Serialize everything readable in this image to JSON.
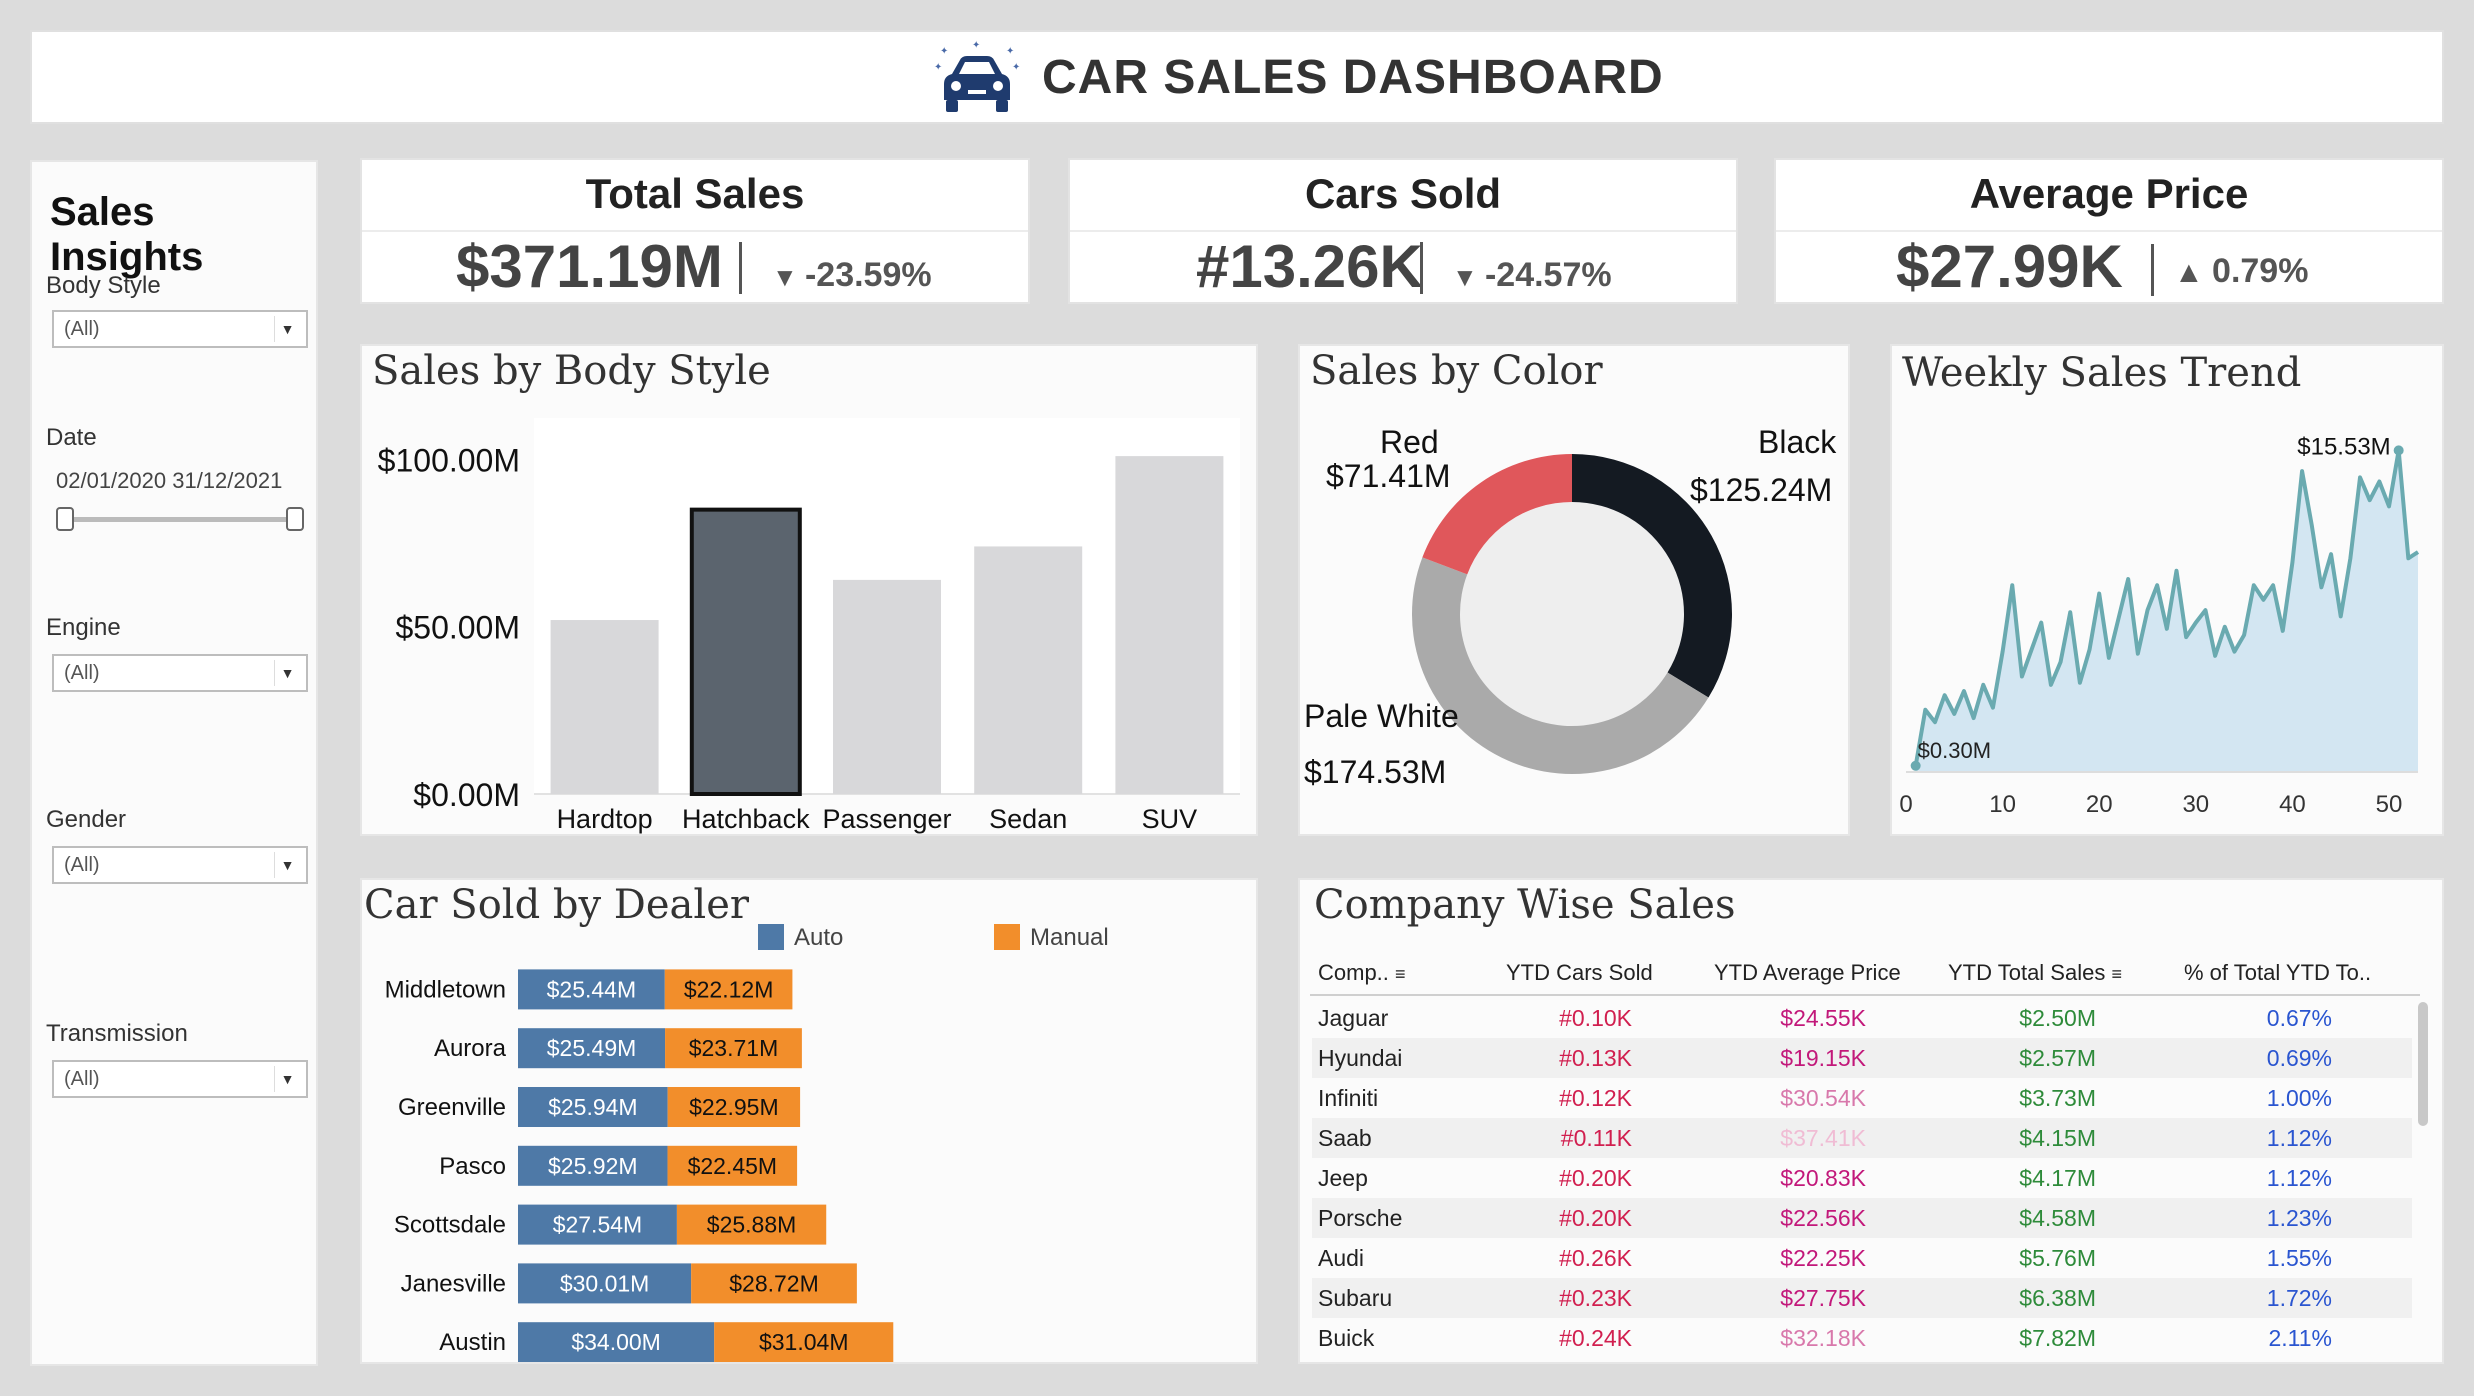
{
  "header": {
    "title": "CAR SALES DASHBOARD",
    "logo_icon": "car-icon"
  },
  "sidebar": {
    "title": "Sales Insights",
    "filters": [
      {
        "label": "Body Style",
        "value": "(All)"
      },
      {
        "label": "Date",
        "range": "02/01/2020 31/12/2021"
      },
      {
        "label": "Engine",
        "value": "(All)"
      },
      {
        "label": "Gender",
        "value": "(All)"
      },
      {
        "label": "Transmission",
        "value": "(All)"
      }
    ]
  },
  "kpis": [
    {
      "title": "Total Sales",
      "value": "$371.19M",
      "change": "-23.59%",
      "direction": "down"
    },
    {
      "title": "Cars Sold",
      "value": "#13.26K",
      "change": "-24.57%",
      "direction": "down"
    },
    {
      "title": "Average Price",
      "value": "$27.99K",
      "change": "0.79%",
      "direction": "up"
    }
  ],
  "body_style": {
    "title": "Sales by Body Style",
    "y_ticks": [
      "$100.00M",
      "$50.00M",
      "$0.00M"
    ]
  },
  "color_chart": {
    "title": "Sales by Color",
    "labels": {
      "red_name": "Red",
      "red_value": "$71.41M",
      "black_name": "Black",
      "black_value": "$125.24M",
      "white_name": "Pale White",
      "white_value": "$174.53M"
    }
  },
  "weekly": {
    "title": "Weekly Sales Trend",
    "max_label": "$15.53M",
    "min_label": "$0.30M",
    "x_ticks": [
      "0",
      "10",
      "20",
      "30",
      "40",
      "50"
    ]
  },
  "dealer": {
    "title": "Car Sold by Dealer",
    "legend": [
      "Auto",
      "Manual"
    ]
  },
  "company": {
    "title": "Company Wise Sales",
    "columns": [
      "Comp..",
      "YTD Cars Sold",
      "YTD Average Price",
      "YTD Total Sales",
      "% of Total YTD To.."
    ],
    "rows": [
      [
        "Jaguar",
        "#0.10K",
        "$24.55K",
        "$2.50M",
        "0.67%"
      ],
      [
        "Hyundai",
        "#0.13K",
        "$19.15K",
        "$2.57M",
        "0.69%"
      ],
      [
        "Infiniti",
        "#0.12K",
        "$30.54K",
        "$3.73M",
        "1.00%"
      ],
      [
        "Saab",
        "#0.11K",
        "$37.41K",
        "$4.15M",
        "1.12%"
      ],
      [
        "Jeep",
        "#0.20K",
        "$20.83K",
        "$4.17M",
        "1.12%"
      ],
      [
        "Porsche",
        "#0.20K",
        "$22.56K",
        "$4.58M",
        "1.23%"
      ],
      [
        "Audi",
        "#0.26K",
        "$22.25K",
        "$5.76M",
        "1.55%"
      ],
      [
        "Subaru",
        "#0.23K",
        "$27.75K",
        "$6.38M",
        "1.72%"
      ],
      [
        "Buick",
        "#0.24K",
        "$32.18K",
        "$7.82M",
        "2.11%"
      ]
    ]
  },
  "colors": {
    "auto": "#4e79a7",
    "manual": "#f28e2b",
    "black": "#141a22",
    "red": "#e0575b",
    "white": "#aaaaaa",
    "trend": "#6aaab0"
  },
  "chart_data": [
    {
      "type": "bar",
      "title": "Sales by Body Style",
      "categories": [
        "Hardtop",
        "Hatchback",
        "Passenger",
        "Sedan",
        "SUV"
      ],
      "values": [
        52,
        85,
        64,
        74,
        101
      ],
      "ylim": [
        0,
        110
      ],
      "highlight": "Hatchback"
    },
    {
      "type": "pie",
      "title": "Sales by Color",
      "categories": [
        "Black",
        "Pale White",
        "Red"
      ],
      "values": [
        125.24,
        174.53,
        71.41
      ]
    },
    {
      "type": "area",
      "title": "Weekly Sales Trend",
      "x": [
        1,
        2,
        3,
        4,
        5,
        6,
        7,
        8,
        9,
        10,
        11,
        12,
        13,
        14,
        15,
        16,
        17,
        18,
        19,
        20,
        21,
        22,
        23,
        24,
        25,
        26,
        27,
        28,
        29,
        30,
        31,
        32,
        33,
        34,
        35,
        36,
        37,
        38,
        39,
        40,
        41,
        42,
        43,
        44,
        45,
        46,
        47,
        48,
        49,
        50,
        51,
        52,
        53
      ],
      "values": [
        0.3,
        3.0,
        2.4,
        3.7,
        2.8,
        3.9,
        2.6,
        4.2,
        3.1,
        5.8,
        9.0,
        4.6,
        5.9,
        7.2,
        4.2,
        5.3,
        7.7,
        4.3,
        5.9,
        8.6,
        5.5,
        7.4,
        9.3,
        5.7,
        7.8,
        9.0,
        6.9,
        9.7,
        6.5,
        7.2,
        7.8,
        5.6,
        7.0,
        5.8,
        6.6,
        9.0,
        8.3,
        9.0,
        6.8,
        10.1,
        14.5,
        11.9,
        8.9,
        10.5,
        7.5,
        10.3,
        14.2,
        13.1,
        14.0,
        12.8,
        15.5,
        10.3,
        10.6
      ],
      "xlim": [
        0,
        53
      ]
    },
    {
      "type": "bar",
      "title": "Car Sold by Dealer",
      "orientation": "horizontal-stacked",
      "categories": [
        "Middletown",
        "Aurora",
        "Greenville",
        "Pasco",
        "Scottsdale",
        "Janesville",
        "Austin"
      ],
      "series": [
        {
          "name": "Auto",
          "values": [
            25.44,
            25.49,
            25.94,
            25.92,
            27.54,
            30.01,
            34.0
          ],
          "labels": [
            "$25.44M",
            "$25.49M",
            "$25.94M",
            "$25.92M",
            "$27.54M",
            "$30.01M",
            "$34.00M"
          ]
        },
        {
          "name": "Manual",
          "values": [
            22.12,
            23.71,
            22.95,
            22.45,
            25.88,
            28.72,
            31.04
          ],
          "labels": [
            "$22.12M",
            "$23.71M",
            "$22.95M",
            "$22.45M",
            "$25.88M",
            "$28.72M",
            "$31.04M"
          ]
        }
      ]
    }
  ]
}
